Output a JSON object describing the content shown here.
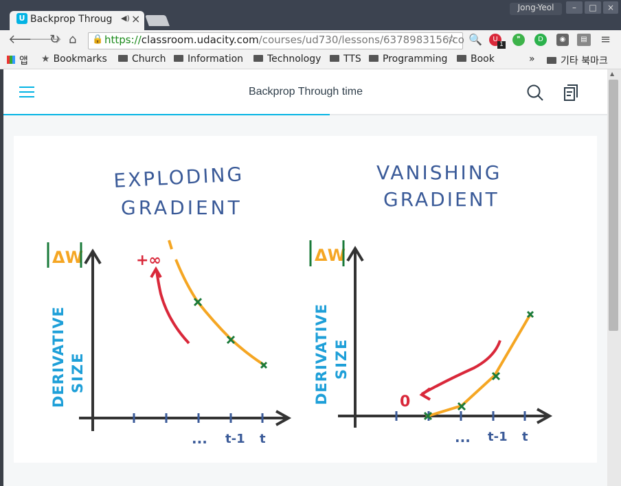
{
  "browser": {
    "tab_title": "Backprop Throug",
    "tab_favicon_letter": "U",
    "tab_audio_icon": "speaker-icon",
    "tab_close": "×",
    "user_name": "Jong-Yeol",
    "url_scheme": "https://",
    "url_host": "classroom.udacity.com",
    "url_path": "/courses/ud730/lessons/6378983156/co",
    "window_buttons": [
      "–",
      "□",
      "×"
    ],
    "extension_badge": "1"
  },
  "bookmarks": {
    "apps_label": "앱",
    "items": [
      "Bookmarks",
      "Church",
      "Information",
      "Technology",
      "TTS",
      "Programming",
      "Book"
    ],
    "overflow": "»",
    "other": "기타 북마크"
  },
  "classroom": {
    "title": "Backprop Through time",
    "progress_fraction": 0.54
  },
  "figure": {
    "left_title_1": "EXPLODING",
    "left_title_2": "GRADIENT",
    "right_title_1": "VANISHING",
    "right_title_2": "GRADIENT",
    "delta_w": "ΔW",
    "ylabel_1": "DERIVATIVE",
    "ylabel_2": "SIZE",
    "plus_inf": "+∞",
    "zero": "0",
    "tick_dots": "...",
    "tick_t_minus_1": "t-1",
    "tick_t": "t",
    "colors": {
      "orange": "#f5a623",
      "green": "#1a7a3a",
      "red": "#d9283a",
      "blue": "#1e9fd8",
      "navy": "#3a5a98",
      "axis": "#333333"
    }
  }
}
